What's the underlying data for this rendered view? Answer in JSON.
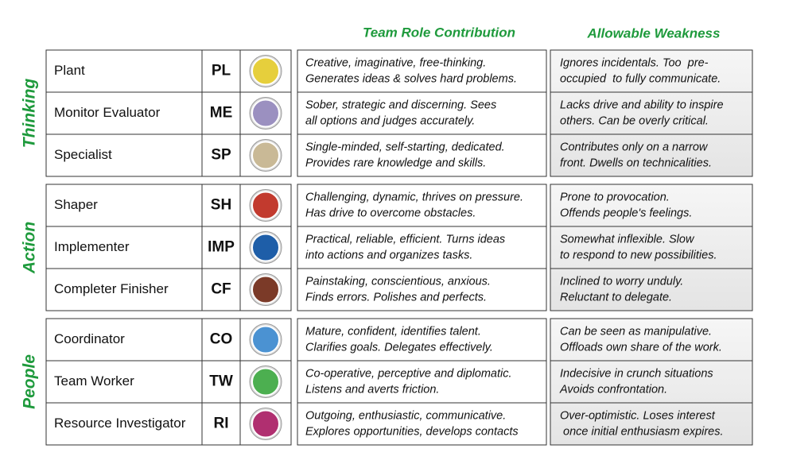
{
  "header": {
    "contribution": "Team Role Contribution",
    "weakness": "Allowable Weakness"
  },
  "groups": [
    {
      "label": "Thinking",
      "roles": [
        {
          "name": "Plant",
          "code": "PL",
          "contribution": [
            "Creative, imaginative, free-thinking.",
            "Generates ideas & solves hard problems."
          ],
          "weakness": [
            "Ignores incidentals. Too  pre-",
            "occupied  to fully communicate."
          ]
        },
        {
          "name": "Monitor Evaluator",
          "code": "ME",
          "contribution": [
            "Sober, strategic and discerning. Sees",
            "all options and judges accurately."
          ],
          "weakness": [
            "Lacks drive and ability to inspire",
            "others. Can be overly critical."
          ]
        },
        {
          "name": "Specialist",
          "code": "SP",
          "contribution": [
            "Single-minded, self-starting, dedicated.",
            "Provides rare knowledge and skills."
          ],
          "weakness": [
            "Contributes only on a narrow",
            "front. Dwells on technicalities."
          ]
        }
      ]
    },
    {
      "label": "Action",
      "roles": [
        {
          "name": "Shaper",
          "code": "SH",
          "contribution": [
            "Challenging, dynamic, thrives on pressure.",
            "Has drive to overcome obstacles."
          ],
          "weakness": [
            "Prone to provocation.",
            "Offends people's feelings."
          ]
        },
        {
          "name": "Implementer",
          "code": "IMP",
          "contribution": [
            "Practical, reliable, efficient. Turns ideas",
            "into actions and organizes tasks."
          ],
          "weakness": [
            "Somewhat inflexible. Slow",
            "to respond to new possibilities."
          ]
        },
        {
          "name": "Completer Finisher",
          "code": "CF",
          "contribution": [
            "Painstaking, conscientious, anxious.",
            "Finds errors. Polishes and perfects."
          ],
          "weakness": [
            "Inclined to worry unduly.",
            "Reluctant to delegate."
          ]
        }
      ]
    },
    {
      "label": "People",
      "roles": [
        {
          "name": "Coordinator",
          "code": "CO",
          "contribution": [
            "Mature, confident, identifies talent.",
            "Clarifies goals. Delegates effectively."
          ],
          "weakness": [
            "Can be seen as manipulative.",
            "Offloads own share of the work."
          ]
        },
        {
          "name": "Team Worker",
          "code": "TW",
          "contribution": [
            "Co-operative, perceptive and diplomatic.",
            "Listens and averts friction."
          ],
          "weakness": [
            "Indecisive in crunch situations",
            "Avoids confrontation."
          ]
        },
        {
          "name": "Resource Investigator",
          "code": "RI",
          "contribution": [
            "Outgoing, enthusiastic, communicative.",
            "Explores opportunities, develops contacts"
          ],
          "weakness": [
            "Over-optimistic. Loses interest",
            " once initial enthusiasm expires."
          ]
        }
      ]
    }
  ]
}
